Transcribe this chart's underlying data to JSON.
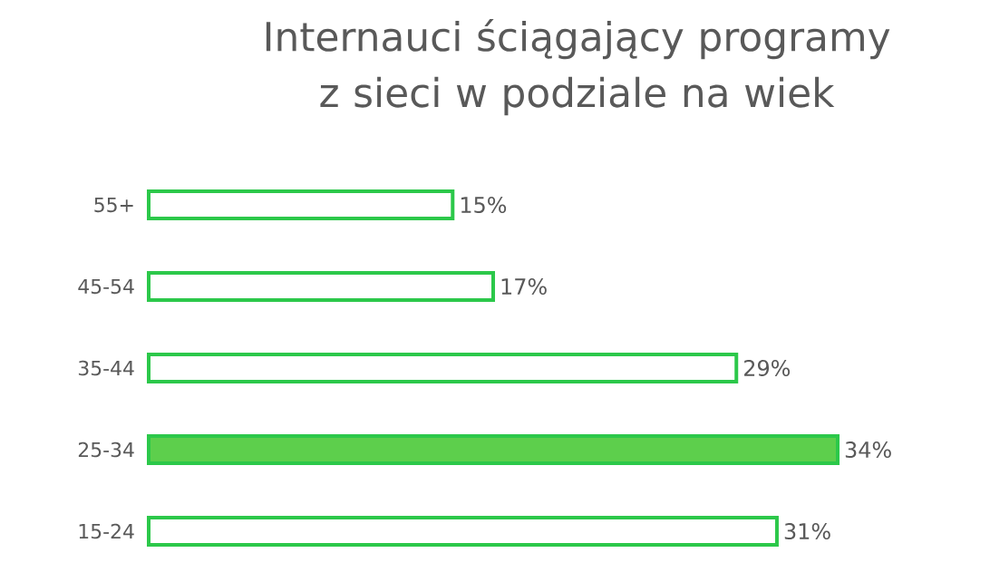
{
  "chart_data": {
    "type": "bar",
    "orientation": "horizontal",
    "title": "Internauci ściągający programy z sieci w podziale na wiek",
    "categories": [
      "55+",
      "45-54",
      "35-44",
      "25-34",
      "15-24"
    ],
    "values": [
      15,
      17,
      29,
      34,
      31
    ],
    "value_labels": [
      "15%",
      "17%",
      "29%",
      "34%",
      "31%"
    ],
    "color": "#2cc84a",
    "colors": [
      "#ffffff",
      "#ffffff",
      "#ffffff",
      "#5dcf4c",
      "#ffffff"
    ],
    "relative": false
  }
}
